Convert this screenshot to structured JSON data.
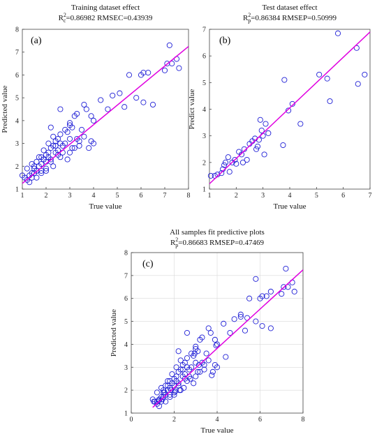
{
  "chart_data": [
    {
      "type": "scatter",
      "panel": "(a)",
      "title": "Training dataset effect",
      "metric": {
        "r2_sub": "c",
        "r2_value": "=0.86982",
        "rmse_text": "RMSEC=0.43939"
      },
      "xlabel": "True value",
      "ylabel": "Predicted value",
      "xlim": [
        1,
        8
      ],
      "ylim": [
        1,
        8
      ],
      "xticks": [
        1,
        2,
        3,
        4,
        5,
        6,
        7,
        8
      ],
      "yticks": [
        1,
        2,
        3,
        4,
        5,
        6,
        7,
        8
      ],
      "grid": false,
      "fit_line": {
        "x": [
          1,
          8
        ],
        "y": [
          1.25,
          7.25
        ]
      },
      "x": [
        1.0,
        1.1,
        1.2,
        1.3,
        1.4,
        1.5,
        1.6,
        1.7,
        1.8,
        1.9,
        2.0,
        1.2,
        1.4,
        1.5,
        1.6,
        1.8,
        2.0,
        2.1,
        2.2,
        2.3,
        2.4,
        2.5,
        1.3,
        1.6,
        1.8,
        2.0,
        2.2,
        2.4,
        2.6,
        2.8,
        3.0,
        1.5,
        1.7,
        1.9,
        2.1,
        2.3,
        2.5,
        2.7,
        2.9,
        3.1,
        3.3,
        2.0,
        2.2,
        2.4,
        2.6,
        2.8,
        3.0,
        3.2,
        3.4,
        3.6,
        1.8,
        2.1,
        2.5,
        2.9,
        3.3,
        3.7,
        3.9,
        4.0,
        2.6,
        2.2,
        2.7,
        3.1,
        3.5,
        1.4,
        1.9,
        2.3,
        2.6,
        3.0,
        3.4,
        3.8,
        4.0,
        4.3,
        4.6,
        4.8,
        5.1,
        5.3,
        5.5,
        5.8,
        6.0,
        6.1,
        6.3,
        6.1,
        6.5,
        7.0,
        7.1,
        7.3,
        7.5,
        7.2,
        7.6,
        3.0,
        3.2,
        3.6,
        3.9
      ],
      "y": [
        1.6,
        1.5,
        1.4,
        1.6,
        1.7,
        1.9,
        1.8,
        2.0,
        2.1,
        2.3,
        2.2,
        1.9,
        2.1,
        1.7,
        2.2,
        2.4,
        1.8,
        2.6,
        2.3,
        2.0,
        2.9,
        2.7,
        1.3,
        1.5,
        1.8,
        2.5,
        2.8,
        3.1,
        2.4,
        3.0,
        2.6,
        2.0,
        2.4,
        2.7,
        3.0,
        3.3,
        2.5,
        2.9,
        3.5,
        2.8,
        3.2,
        1.9,
        2.2,
        2.6,
        3.4,
        3.6,
        3.9,
        2.8,
        3.1,
        3.3,
        1.7,
        2.4,
        3.2,
        2.3,
        4.3,
        4.5,
        4.2,
        3.0,
        4.5,
        3.7,
        2.6,
        3.7,
        3.6,
        1.5,
        2.3,
        2.9,
        3.0,
        3.8,
        2.9,
        2.8,
        4.0,
        4.9,
        4.5,
        5.1,
        5.2,
        4.6,
        6.0,
        5.0,
        6.0,
        6.1,
        6.1,
        4.8,
        4.7,
        6.2,
        6.5,
        6.5,
        6.7,
        7.3,
        6.3,
        3.2,
        4.2,
        4.7,
        3.1
      ]
    },
    {
      "type": "scatter",
      "panel": "(b)",
      "title": "Test dataset effect",
      "metric": {
        "r2_sub": "p",
        "r2_value": "=0.86384",
        "rmse_text": "RMSEP=0.50999"
      },
      "xlabel": "True value",
      "ylabel": "Predict value",
      "xlim": [
        1,
        7
      ],
      "ylim": [
        1,
        7
      ],
      "xticks": [
        1,
        2,
        3,
        4,
        5,
        6,
        7
      ],
      "yticks": [
        1,
        2,
        3,
        4,
        5,
        6,
        7
      ],
      "grid": false,
      "fit_line": {
        "x": [
          1,
          7
        ],
        "y": [
          1.2,
          6.9
        ]
      },
      "x": [
        1.05,
        1.2,
        1.3,
        1.45,
        1.5,
        1.55,
        1.6,
        1.7,
        1.75,
        1.85,
        1.95,
        2.0,
        2.1,
        2.2,
        2.25,
        2.3,
        2.4,
        2.5,
        2.6,
        2.7,
        2.75,
        2.8,
        2.9,
        3.0,
        3.05,
        3.1,
        3.2,
        2.85,
        2.95,
        3.75,
        3.8,
        3.95,
        4.1,
        4.4,
        5.1,
        5.4,
        5.5,
        5.8,
        6.5,
        6.55,
        6.8
      ],
      "y": [
        1.5,
        1.5,
        1.55,
        1.6,
        1.75,
        1.9,
        2.0,
        2.2,
        1.65,
        2.0,
        2.1,
        1.95,
        2.4,
        2.3,
        2.0,
        2.5,
        2.1,
        2.7,
        2.8,
        2.9,
        2.5,
        2.6,
        3.6,
        3.0,
        2.3,
        3.45,
        3.1,
        2.85,
        3.2,
        2.65,
        5.1,
        3.95,
        4.2,
        3.45,
        5.3,
        5.15,
        4.3,
        6.85,
        6.3,
        4.95,
        5.3
      ]
    },
    {
      "type": "scatter",
      "panel": "(c)",
      "title": "All samples fit predictive plots",
      "metric": {
        "r2_sub": "p",
        "r2_value": "=0.86683",
        "rmse_text": "RMSEP=0.47469"
      },
      "xlabel": "True value",
      "ylabel": "Predicted value",
      "xlim": [
        0,
        8
      ],
      "ylim": [
        1,
        8
      ],
      "xticks": [
        0,
        2,
        4,
        6,
        8
      ],
      "yticks": [
        1,
        2,
        3,
        4,
        5,
        6,
        7,
        8
      ],
      "grid": true,
      "fit_line": {
        "x": [
          1,
          8
        ],
        "y": [
          1.25,
          7.25
        ]
      },
      "x": [
        1.0,
        1.1,
        1.2,
        1.3,
        1.4,
        1.5,
        1.6,
        1.7,
        1.8,
        1.9,
        2.0,
        1.2,
        1.4,
        1.5,
        1.6,
        1.8,
        2.0,
        2.1,
        2.2,
        2.3,
        2.4,
        2.5,
        1.3,
        1.6,
        1.8,
        2.0,
        2.2,
        2.4,
        2.6,
        2.8,
        3.0,
        1.5,
        1.7,
        1.9,
        2.1,
        2.3,
        2.5,
        2.7,
        2.9,
        3.1,
        3.3,
        2.0,
        2.2,
        2.4,
        2.6,
        2.8,
        3.0,
        3.2,
        3.4,
        3.6,
        1.8,
        2.1,
        2.5,
        2.9,
        3.3,
        3.7,
        3.9,
        4.0,
        2.6,
        2.2,
        2.7,
        3.1,
        3.5,
        1.4,
        1.9,
        2.3,
        2.6,
        3.0,
        3.4,
        3.8,
        4.0,
        4.3,
        4.6,
        4.8,
        5.1,
        5.3,
        5.5,
        5.8,
        6.0,
        6.1,
        6.3,
        6.1,
        6.5,
        7.0,
        7.1,
        7.3,
        7.5,
        7.2,
        7.6,
        3.0,
        3.2,
        3.6,
        3.9,
        1.05,
        1.2,
        1.3,
        1.45,
        1.55,
        1.7,
        1.85,
        2.05,
        2.25,
        2.45,
        2.75,
        2.95,
        3.15,
        3.75,
        3.95,
        4.4,
        5.1,
        5.4,
        5.8,
        6.5
      ],
      "y": [
        1.6,
        1.5,
        1.4,
        1.6,
        1.7,
        1.9,
        1.8,
        2.0,
        2.1,
        2.3,
        2.2,
        1.9,
        2.1,
        1.7,
        2.2,
        2.4,
        1.8,
        2.6,
        2.3,
        2.0,
        2.9,
        2.7,
        1.3,
        1.5,
        1.8,
        2.5,
        2.8,
        3.1,
        2.4,
        3.0,
        2.6,
        2.0,
        2.4,
        2.7,
        3.0,
        3.3,
        2.5,
        2.9,
        3.5,
        2.8,
        3.2,
        1.9,
        2.2,
        2.6,
        3.4,
        3.6,
        3.9,
        2.8,
        3.1,
        3.3,
        1.7,
        2.4,
        3.2,
        2.3,
        4.3,
        4.5,
        4.2,
        3.0,
        4.5,
        3.7,
        2.6,
        3.7,
        3.6,
        1.5,
        2.3,
        2.9,
        3.0,
        3.8,
        2.9,
        2.8,
        4.0,
        4.9,
        4.5,
        5.1,
        5.2,
        4.6,
        6.0,
        5.0,
        6.0,
        6.1,
        6.1,
        4.8,
        4.7,
        6.2,
        6.5,
        6.5,
        6.7,
        7.3,
        6.3,
        3.2,
        4.2,
        4.7,
        3.1,
        1.5,
        1.5,
        1.55,
        1.6,
        1.9,
        2.2,
        2.0,
        1.95,
        2.0,
        2.1,
        2.5,
        3.6,
        3.1,
        2.65,
        3.95,
        3.45,
        5.3,
        5.15,
        6.85,
        6.3
      ]
    }
  ],
  "colors": {
    "marker": "#1f1fd6",
    "fit_line": "#e000e0",
    "grid": "#d9d9d9",
    "frame": "#444444"
  }
}
